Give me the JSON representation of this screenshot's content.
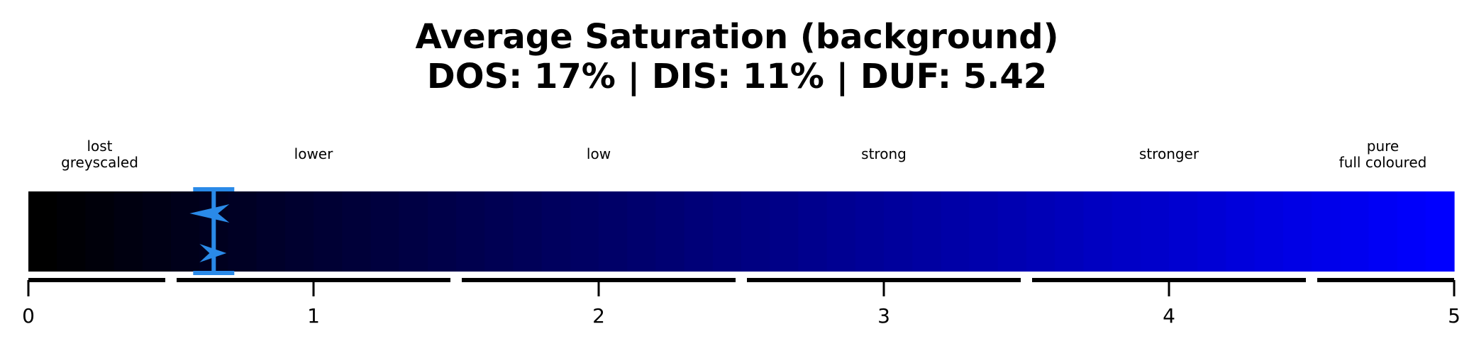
{
  "chart_data": {
    "type": "colorbar-gauge",
    "title": "Average Saturation (background)",
    "subtitle": "DOS: 17% | DIS: 11% | DUF: 5.42",
    "xlim": [
      0,
      5
    ],
    "ticks": [
      0,
      1,
      2,
      3,
      4,
      5
    ],
    "tick_labels": [
      "0",
      "1",
      "2",
      "3",
      "4",
      "5"
    ],
    "gradient": {
      "from": "#000000",
      "to": "#0000ff",
      "steps": 50
    },
    "categories": [
      {
        "label_lines": [
          "lost",
          "greyscaled"
        ],
        "range": [
          0,
          0.5
        ]
      },
      {
        "label_lines": [
          "lower"
        ],
        "range": [
          0.5,
          1.5
        ]
      },
      {
        "label_lines": [
          "low"
        ],
        "range": [
          1.5,
          2.5
        ]
      },
      {
        "label_lines": [
          "strong"
        ],
        "range": [
          2.5,
          3.5
        ]
      },
      {
        "label_lines": [
          "stronger"
        ],
        "range": [
          3.5,
          4.5
        ]
      },
      {
        "label_lines": [
          "pure",
          "full coloured"
        ],
        "range": [
          4.5,
          5
        ]
      }
    ],
    "marker": {
      "value": 0.65,
      "color": "#2a8ae8"
    }
  }
}
